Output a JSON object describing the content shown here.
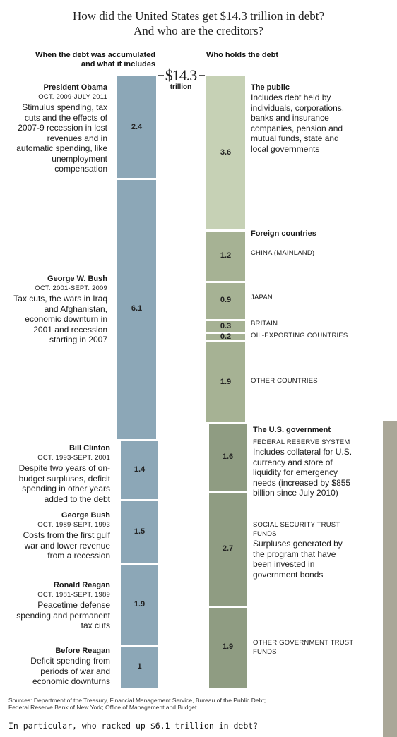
{
  "title": {
    "line1": "How did the United States get $14.3 trillion in debt?",
    "line2": "And who are the creditors?"
  },
  "left_header": {
    "line1": "When the debt was accumulated",
    "line2": "and what it includes"
  },
  "right_header": "Who holds the debt",
  "total": {
    "amount": "$14.3",
    "unit": "trillion"
  },
  "colors": {
    "left_bar": "#8ca7b7",
    "public": "#c6d1b5",
    "foreign": "#a6b294",
    "us_gov": "#8f9c82",
    "sidebar": "#aaa798"
  },
  "chart_data": [
    {
      "type": "bar",
      "orientation": "stacked-vertical",
      "title": "When the debt was accumulated and what it includes",
      "unit": "trillion $",
      "total": 14.3,
      "segments": [
        {
          "name": "President Obama",
          "period": "OCT. 2009-JULY 2011",
          "value": 2.4,
          "description": "Stimulus spending, tax cuts and the effects of 2007-9 recession in lost revenues and in automatic spending, like unemployment compensation"
        },
        {
          "name": "George W. Bush",
          "period": "OCT. 2001-SEPT. 2009",
          "value": 6.1,
          "description": "Tax cuts, the wars in Iraq and Afghanistan, economic downturn in 2001 and recession starting in 2007"
        },
        {
          "name": "Bill Clinton",
          "period": "OCT. 1993-SEPT. 2001",
          "value": 1.4,
          "description": "Despite two years of on-budget surpluses, deficit spending in other years added to the debt"
        },
        {
          "name": "George Bush",
          "period": "OCT. 1989-SEPT. 1993",
          "value": 1.5,
          "description": "Costs from the first gulf war and lower revenue from a recession"
        },
        {
          "name": "Ronald Reagan",
          "period": "OCT. 1981-SEPT. 1989",
          "value": 1.9,
          "description": "Peacetime defense spending and permanent tax cuts"
        },
        {
          "name": "Before Reagan",
          "period": "",
          "value": 1.0,
          "description": "Deficit spending from periods of war and economic downturns"
        }
      ]
    },
    {
      "type": "bar",
      "orientation": "stacked-vertical",
      "title": "Who holds the debt",
      "unit": "trillion $",
      "total": 14.3,
      "segments": [
        {
          "group": "The public",
          "label": "",
          "value": 3.6,
          "description": "Includes debt held by individuals, corporations, banks and insurance companies, pension and mutual funds, state and local governments"
        },
        {
          "group": "Foreign countries",
          "label": "CHINA (MAINLAND)",
          "value": 1.2,
          "description": ""
        },
        {
          "group": "Foreign countries",
          "label": "JAPAN",
          "value": 0.9,
          "description": ""
        },
        {
          "group": "Foreign countries",
          "label": "BRITAIN",
          "value": 0.3,
          "description": ""
        },
        {
          "group": "Foreign countries",
          "label": "OIL-EXPORTING COUNTRIES",
          "value": 0.2,
          "description": ""
        },
        {
          "group": "Foreign countries",
          "label": "OTHER COUNTRIES",
          "value": 1.9,
          "description": ""
        },
        {
          "group": "The U.S. government",
          "label": "FEDERAL RESERVE SYSTEM",
          "value": 1.6,
          "description": "Includes collateral for U.S. currency and store of liquidity for emergency needs (increased by $855 billion since July 2010)"
        },
        {
          "group": "The U.S. government",
          "label": "SOCIAL SECURITY TRUST FUNDS",
          "value": 2.7,
          "description": "Surpluses generated by the program that have been invested in government bonds"
        },
        {
          "group": "The U.S. government",
          "label": "OTHER GOVERNMENT TRUST FUNDS",
          "value": 1.9,
          "description": ""
        }
      ]
    }
  ],
  "sources": "Sources: Department of the Treasury, Financial Management Service, Bureau of the Public Debt; Federal Reserve Bank of New York; Office of Management and Budget",
  "question": "In particular, who racked up $6.1 trillion in debt?"
}
